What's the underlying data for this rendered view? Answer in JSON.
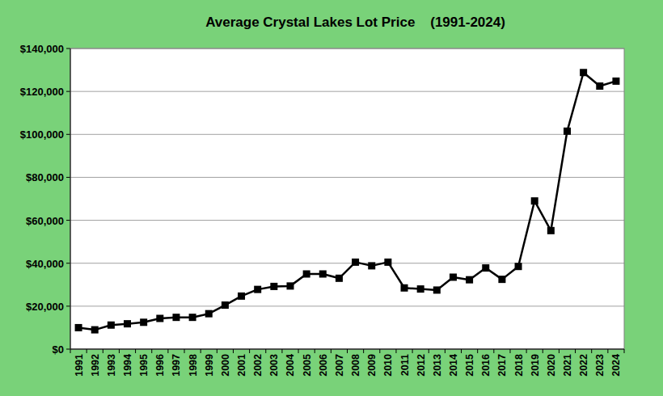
{
  "chart_data": {
    "type": "line",
    "title": "Average Crystal Lakes Lot Price    (1991-2024)",
    "categories": [
      "1991",
      "1992",
      "1993",
      "1994",
      "1995",
      "1996",
      "1997",
      "1998",
      "1999",
      "2000",
      "2001",
      "2002",
      "2003",
      "2004",
      "2005",
      "2006",
      "2007",
      "2008",
      "2009",
      "2010",
      "2011",
      "2012",
      "2013",
      "2014",
      "2015",
      "2016",
      "2017",
      "2018",
      "2019",
      "2020",
      "2021",
      "2022",
      "2023",
      "2024"
    ],
    "values": [
      10000,
      9000,
      11200,
      11800,
      12500,
      14300,
      14800,
      14800,
      16500,
      20500,
      24700,
      27800,
      29200,
      29400,
      35000,
      35000,
      33000,
      40500,
      38800,
      40500,
      28500,
      28000,
      27500,
      33500,
      32300,
      37800,
      32500,
      38500,
      69000,
      55200,
      101500,
      128800,
      122500,
      124800
    ],
    "color": "#000000",
    "marker": "square",
    "ylim": [
      0,
      140000
    ],
    "yticks": [
      {
        "value": 0,
        "label": "$0"
      },
      {
        "value": 20000,
        "label": "$20,000"
      },
      {
        "value": 40000,
        "label": "$40,000"
      },
      {
        "value": 60000,
        "label": "$60,000"
      },
      {
        "value": 80000,
        "label": "$80,000"
      },
      {
        "value": 100000,
        "label": "$100,000"
      },
      {
        "value": 120000,
        "label": "$120,000"
      },
      {
        "value": 140000,
        "label": "$140,000"
      }
    ],
    "grid": true
  }
}
